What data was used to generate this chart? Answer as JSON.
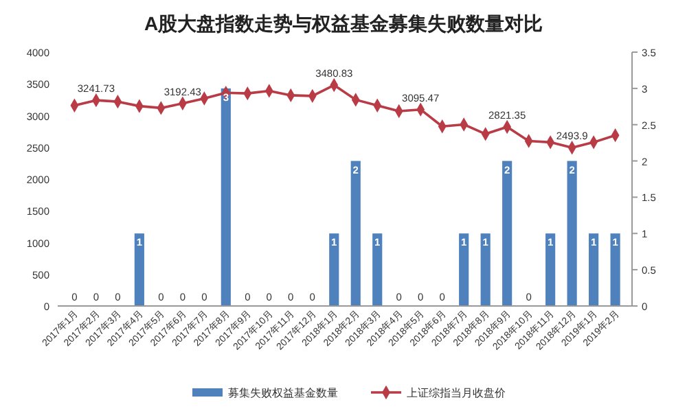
{
  "chart_data": {
    "type": "bar",
    "title": "A股大盘指数走势与权益基金募集失败数量对比",
    "categories": [
      "2017年1月",
      "2017年2月",
      "2017年3月",
      "2017年4月",
      "2017年5月",
      "2017年6月",
      "2017年7月",
      "2017年8月",
      "2017年9月",
      "2017年10月",
      "2017年11月",
      "2017年12月",
      "2018年1月",
      "2018年2月",
      "2018年3月",
      "2018年4月",
      "2018年5月",
      "2018年6月",
      "2018年7月",
      "2018年8月",
      "2018年9月",
      "2018年10月",
      "2018年11月",
      "2018年12月",
      "2019年1月",
      "2019年2月"
    ],
    "series": [
      {
        "name": "募集失败权益基金数量",
        "axis": "y2",
        "color": "#4f81bd",
        "values": [
          0,
          0,
          0,
          1,
          0,
          0,
          0,
          3,
          0,
          0,
          0,
          0,
          1,
          2,
          1,
          0,
          0,
          0,
          1,
          1,
          2,
          0,
          1,
          2,
          1,
          1
        ],
        "value_labels": [
          "0",
          "0",
          "0",
          "1",
          "0",
          "0",
          "0",
          "3",
          "0",
          "0",
          "0",
          "0",
          "1",
          "2",
          "1",
          "0",
          "0",
          "0",
          "1",
          "1",
          "2",
          "0",
          "1",
          "2",
          "1",
          "1"
        ]
      },
      {
        "name": "上证综指当月收盘价",
        "type": "line",
        "color": "#b83b45",
        "marker": "diamond",
        "values": [
          3160,
          3241.73,
          3220,
          3150,
          3120,
          3192.43,
          3270,
          3360,
          3350,
          3390,
          3320,
          3310,
          3480.83,
          3250,
          3160,
          3070,
          3095.47,
          2830,
          2860,
          2710,
          2821.35,
          2600,
          2580,
          2493.9,
          2580,
          2690
        ],
        "value_labels": [
          null,
          "3241.73",
          null,
          null,
          null,
          "3192.43",
          null,
          null,
          null,
          null,
          null,
          null,
          "3480.83",
          null,
          null,
          null,
          "3095.47",
          null,
          null,
          null,
          "2821.35",
          null,
          null,
          "2493.9",
          null,
          null
        ]
      }
    ],
    "ylim": [
      0,
      4000
    ],
    "yticks": [
      0,
      500,
      1000,
      1500,
      2000,
      2500,
      3000,
      3500,
      4000
    ],
    "y2lim": [
      0,
      3.5
    ],
    "y2ticks": [
      0,
      0.5,
      1,
      1.5,
      2,
      2.5,
      3,
      3.5
    ],
    "grid": false,
    "legend": "bottom"
  }
}
